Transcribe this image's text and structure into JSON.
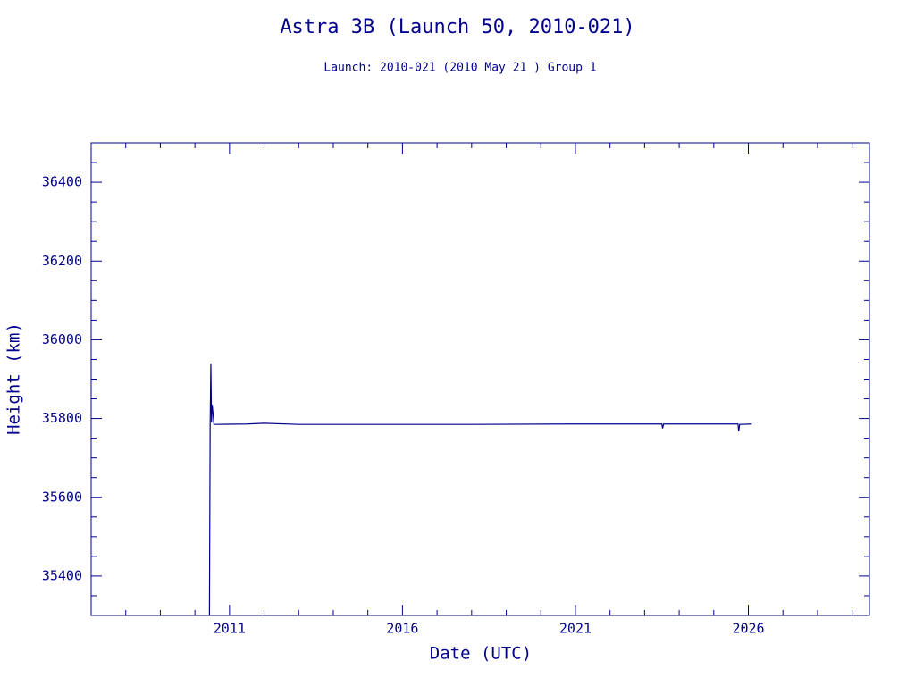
{
  "chart_data": {
    "type": "line",
    "title": "Astra 3B (Launch 50, 2010-021)",
    "subtitle": "Launch: 2010-021  (2010 May 21 )  Group 1",
    "x_label": "Date (UTC)",
    "y_label": "Height (km)",
    "color": "#00008b",
    "xlim": [
      2007,
      2029.5
    ],
    "xticks": [
      2011,
      2016,
      2021,
      2026
    ],
    "xminorticks": [
      2008,
      2009,
      2010,
      2012,
      2013,
      2014,
      2015,
      2017,
      2018,
      2019,
      2020,
      2022,
      2023,
      2024,
      2025,
      2027,
      2028,
      2029
    ],
    "ylim": [
      35300,
      36500
    ],
    "yticks": [
      35400,
      35600,
      35800,
      36000,
      36200,
      36400
    ],
    "yminorticks": [
      35350,
      35450,
      35500,
      35550,
      35650,
      35700,
      35750,
      35850,
      35900,
      35950,
      36050,
      36100,
      36150,
      36250,
      36300,
      36350,
      36450
    ],
    "x": [
      2010.42,
      2010.44,
      2010.46,
      2010.48,
      2010.5,
      2010.55,
      2011.5,
      2012.0,
      2013.0,
      2015.0,
      2018.0,
      2021.0,
      2023.5,
      2023.52,
      2023.55,
      2025.7,
      2025.72,
      2025.75,
      2026.1
    ],
    "values": [
      35300,
      35780,
      35940,
      35790,
      35835,
      35785,
      35786,
      35788,
      35785,
      35785,
      35785,
      35786,
      35786,
      35775,
      35786,
      35786,
      35768,
      35785,
      35786
    ]
  }
}
